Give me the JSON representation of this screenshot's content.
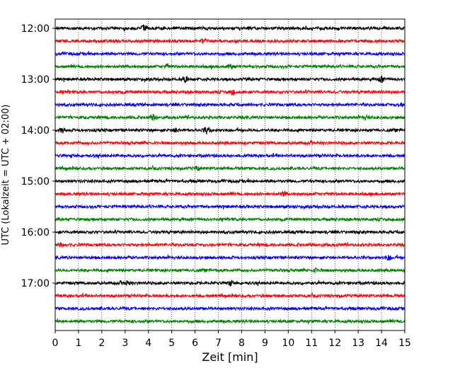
{
  "chart_data": {
    "type": "line",
    "title": "",
    "xlabel": "Zeit  [min]",
    "ylabel": "UTC (Lokalzeit = UTC + 02:00)",
    "xlim": [
      0,
      15
    ],
    "x_ticks": [
      0,
      1,
      2,
      3,
      4,
      5,
      6,
      7,
      8,
      9,
      10,
      11,
      12,
      13,
      14,
      15
    ],
    "x_grid": "vertical dotted lines at each minute",
    "trace_interval_minutes": 15,
    "first_trace_utc": "12:00",
    "trace_count": 24,
    "y_tick_labels": [
      "12:00",
      "13:00",
      "14:00",
      "15:00",
      "16:00",
      "17:00"
    ],
    "color_cycle": [
      "#000000",
      "#ff0000",
      "#0000ff",
      "#008000"
    ],
    "events": [
      {
        "trace": "12:00",
        "minute": 3.8,
        "amp": 3.0
      },
      {
        "trace": "12:15",
        "minute": 6.4,
        "amp": 3.0
      },
      {
        "trace": "12:45",
        "minute": 4.8,
        "amp": 3.0
      },
      {
        "trace": "12:45",
        "minute": 7.5,
        "amp": 2.6
      },
      {
        "trace": "13:00",
        "minute": 5.6,
        "amp": 2.8
      },
      {
        "trace": "13:00",
        "minute": 14.0,
        "amp": 3.4
      },
      {
        "trace": "13:15",
        "minute": 7.6,
        "amp": 3.0
      },
      {
        "trace": "13:30",
        "minute": 14.8,
        "amp": 2.4
      },
      {
        "trace": "13:45",
        "minute": 4.2,
        "amp": 4.0
      },
      {
        "trace": "13:45",
        "minute": 13.3,
        "amp": 2.4
      },
      {
        "trace": "14:00",
        "minute": 0.3,
        "amp": 2.6
      },
      {
        "trace": "14:00",
        "minute": 5.2,
        "amp": 2.6
      },
      {
        "trace": "14:00",
        "minute": 6.5,
        "amp": 4.2
      },
      {
        "trace": "14:45",
        "minute": 6.1,
        "amp": 2.4
      },
      {
        "trace": "15:15",
        "minute": 9.8,
        "amp": 2.2
      },
      {
        "trace": "16:15",
        "minute": 0.3,
        "amp": 2.8
      },
      {
        "trace": "16:30",
        "minute": 14.3,
        "amp": 2.6
      },
      {
        "trace": "16:45",
        "minute": 11.2,
        "amp": 2.2
      },
      {
        "trace": "17:00",
        "minute": 3.1,
        "amp": 2.2
      },
      {
        "trace": "17:00",
        "minute": 7.5,
        "amp": 2.2
      }
    ]
  }
}
